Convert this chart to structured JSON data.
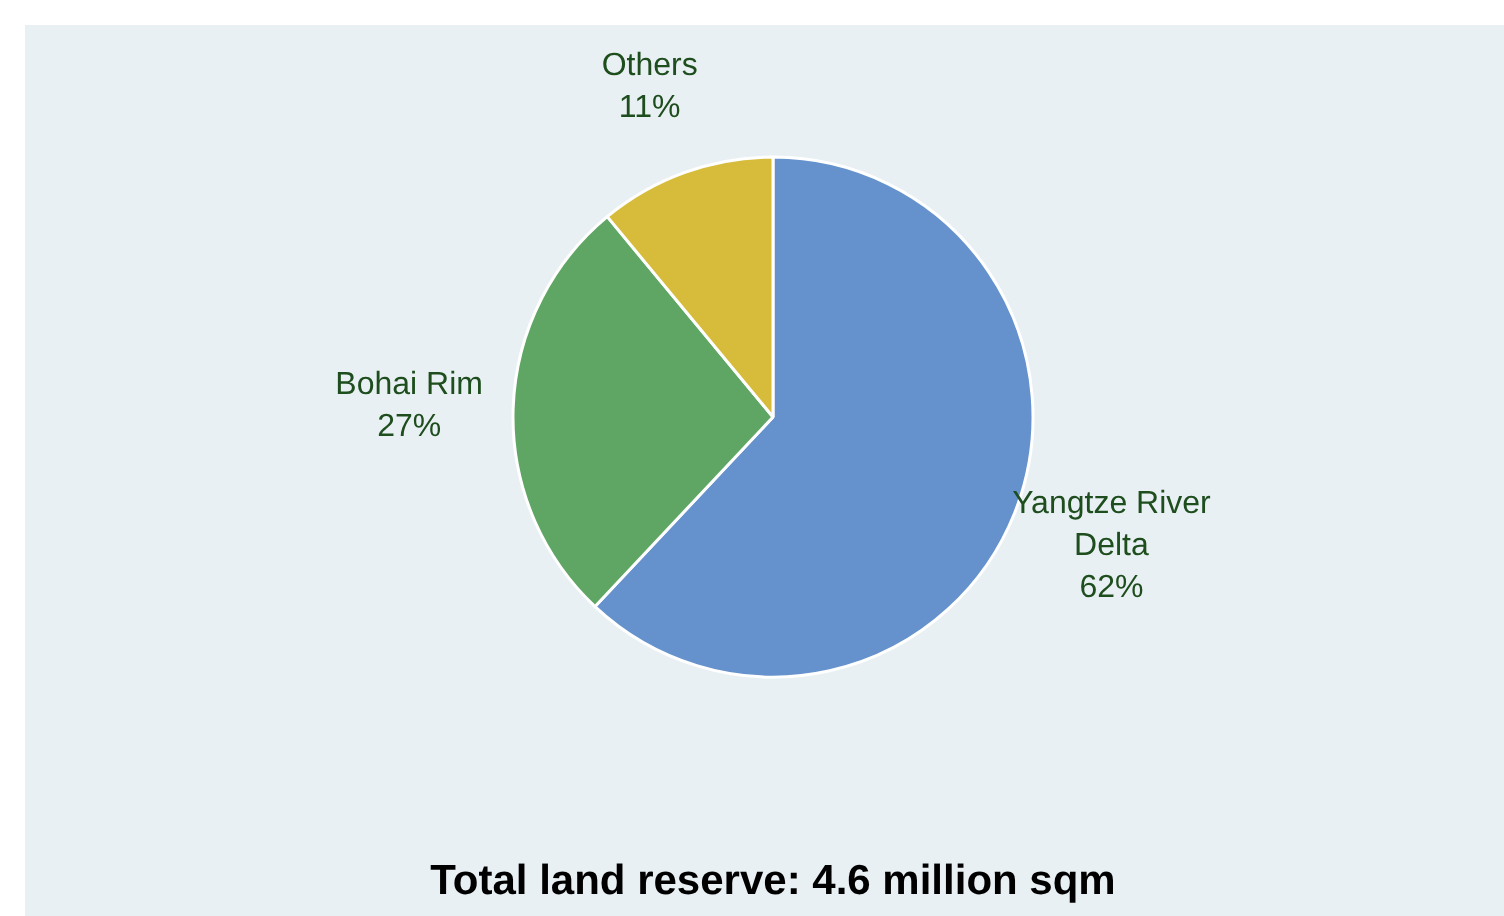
{
  "chart_data": {
    "type": "pie",
    "title": "Total land reserve: 4.6 million sqm",
    "categories": [
      "Yangtze River Delta",
      "Bohai Rim",
      "Others"
    ],
    "values": [
      62,
      27,
      11
    ],
    "colors": [
      "#6592cc",
      "#5fa664",
      "#d6bc3a"
    ],
    "value_labels": [
      "62%",
      "27%",
      "11%"
    ]
  }
}
